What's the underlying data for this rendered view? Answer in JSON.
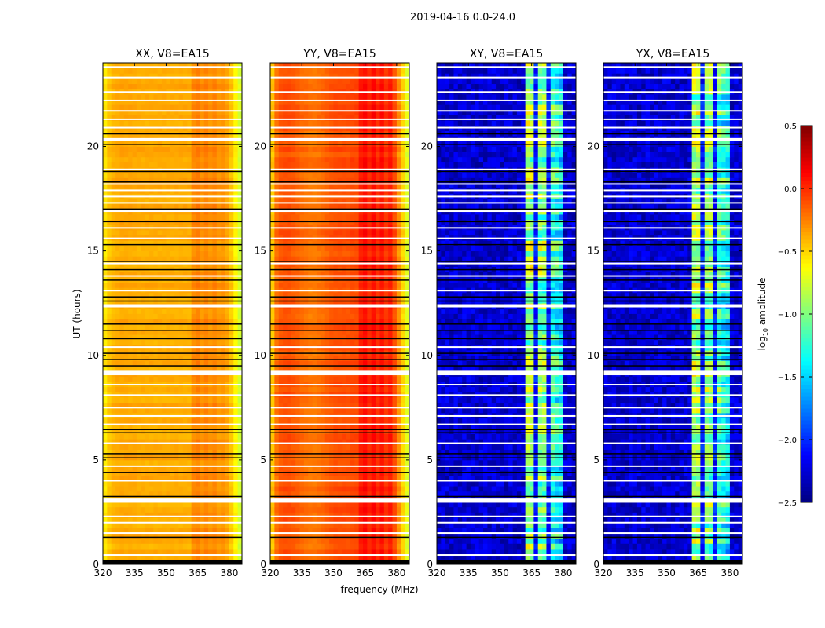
{
  "chart_data": {
    "type": "heatmap",
    "title": "2019-04-16 0.0-24.0",
    "xlabel": "frequency (MHz)",
    "ylabel": "UT (hours)",
    "xlim": [
      320,
      386
    ],
    "ylim": [
      0,
      24
    ],
    "xticks": [
      "320",
      "335",
      "350",
      "365",
      "380"
    ],
    "yticks": [
      "0",
      "5",
      "10",
      "15",
      "20"
    ],
    "freq_bin_start_mhz": [
      320,
      322,
      324,
      326,
      328,
      330,
      332,
      334,
      336,
      338,
      340,
      342,
      344,
      346,
      348,
      350,
      352,
      354,
      356,
      358,
      360,
      362,
      364,
      366,
      368,
      370,
      372,
      374,
      376,
      378,
      380,
      382,
      384
    ],
    "freq_bin_width_mhz": 2,
    "colorbar": {
      "label": "log10 amplitude",
      "label_main": "log",
      "label_sub": "10",
      "label_rest": " amplitude",
      "range": [
        -2.5,
        0.5
      ],
      "ticks": [
        "0.5",
        "0.0",
        "−0.5",
        "−1.0",
        "−1.5",
        "−2.0",
        "−2.5"
      ],
      "tick_values": [
        0.5,
        0.0,
        -0.5,
        -1.0,
        -1.5,
        -2.0,
        -2.5
      ],
      "colormap": "jet"
    },
    "panels": [
      {
        "title": "XX, V8=EA15",
        "kind": "parallel",
        "freq_profile": [
          -0.55,
          -0.45,
          -0.4,
          -0.38,
          -0.37,
          -0.37,
          -0.37,
          -0.37,
          -0.38,
          -0.38,
          -0.38,
          -0.38,
          -0.38,
          -0.38,
          -0.38,
          -0.38,
          -0.38,
          -0.38,
          -0.38,
          -0.38,
          -0.38,
          -0.28,
          -0.25,
          -0.3,
          -0.26,
          -0.3,
          -0.27,
          -0.32,
          -0.3,
          -0.35,
          -0.45,
          -0.6,
          -0.75
        ]
      },
      {
        "title": "YY, V8=EA15",
        "kind": "parallel",
        "freq_profile": [
          -0.45,
          -0.2,
          -0.12,
          -0.1,
          -0.1,
          -0.12,
          -0.15,
          -0.18,
          -0.2,
          -0.22,
          -0.22,
          -0.2,
          -0.18,
          -0.15,
          -0.12,
          -0.1,
          -0.1,
          -0.1,
          -0.1,
          -0.08,
          -0.08,
          0.05,
          0.1,
          0.02,
          0.1,
          0.0,
          0.08,
          -0.02,
          0.05,
          -0.1,
          -0.3,
          -0.5,
          -0.7
        ]
      },
      {
        "title": "XY, V8=EA15",
        "kind": "cross",
        "freq_profile": [
          -2.3,
          -2.3,
          -2.3,
          -2.3,
          -2.3,
          -2.3,
          -2.3,
          -2.3,
          -2.3,
          -2.3,
          -2.3,
          -2.3,
          -2.3,
          -2.3,
          -2.3,
          -2.3,
          -2.3,
          -2.3,
          -2.3,
          -2.3,
          -2.3,
          -0.9,
          -0.9,
          -2.1,
          -1.0,
          -1.0,
          -2.1,
          -1.2,
          -1.3,
          -1.4,
          -2.3,
          -2.3,
          -2.3
        ]
      },
      {
        "title": "YX, V8=EA15",
        "kind": "cross",
        "freq_profile": [
          -2.3,
          -2.3,
          -2.3,
          -2.3,
          -2.3,
          -2.3,
          -2.3,
          -2.3,
          -2.3,
          -2.3,
          -2.3,
          -2.3,
          -2.3,
          -2.3,
          -2.3,
          -2.3,
          -2.3,
          -2.3,
          -2.3,
          -2.3,
          -2.3,
          -0.9,
          -0.9,
          -2.1,
          -1.0,
          -1.0,
          -2.1,
          -1.2,
          -1.3,
          -1.4,
          -2.3,
          -2.3,
          -2.3
        ]
      }
    ],
    "flagged_bands_hours": [
      [
        2.95,
        3.15
      ],
      [
        9.05,
        9.3
      ],
      [
        12.3,
        12.45
      ],
      [
        20.25,
        20.4
      ]
    ],
    "flagged_lines_hours": [
      0.45,
      1.5,
      2.0,
      2.3,
      4.0,
      4.7,
      5.8,
      6.7,
      7.1,
      7.5,
      8.1,
      8.6,
      10.4,
      13.1,
      13.8,
      14.4,
      15.6,
      16.1,
      16.9,
      17.3,
      17.6,
      17.9,
      18.2,
      18.9,
      20.9,
      21.3,
      21.7,
      22.2,
      22.6,
      23.3,
      23.8
    ],
    "black_lines_hours": [
      1.3,
      3.25,
      4.4,
      5.1,
      5.3,
      6.3,
      6.45,
      9.5,
      9.8,
      10.1,
      10.8,
      11.2,
      11.5,
      12.6,
      12.8,
      13.6,
      14.1,
      14.5,
      15.3,
      16.4,
      17.0,
      18.3,
      18.8,
      20.1,
      20.6
    ],
    "black_band_hours": [
      0,
      0.2
    ]
  }
}
